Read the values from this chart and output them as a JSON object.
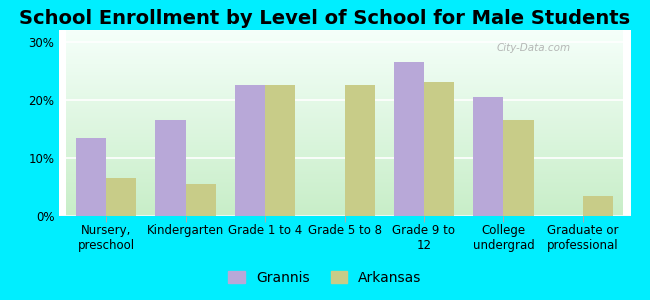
{
  "title": "School Enrollment by Level of School for Male Students",
  "categories": [
    "Nursery,\npreschool",
    "Kindergarten",
    "Grade 1 to 4",
    "Grade 5 to 8",
    "Grade 9 to\n12",
    "College\nundergrad",
    "Graduate or\nprofessional"
  ],
  "grannis": [
    13.5,
    16.5,
    22.5,
    0,
    26.5,
    20.5,
    0
  ],
  "arkansas": [
    6.5,
    5.5,
    22.5,
    22.5,
    23.0,
    16.5,
    3.5
  ],
  "grannis_color": "#b8a8d8",
  "arkansas_color": "#c8cc88",
  "background_outer": "#00eeff",
  "background_inner_top": "#f5fffa",
  "background_inner_bottom": "#c8eec8",
  "yticks": [
    0,
    10,
    20,
    30
  ],
  "ylim": [
    0,
    32
  ],
  "legend_labels": [
    "Grannis",
    "Arkansas"
  ],
  "title_fontsize": 14,
  "tick_fontsize": 8.5,
  "legend_fontsize": 10,
  "bar_width": 0.38,
  "watermark": "City-Data.com"
}
